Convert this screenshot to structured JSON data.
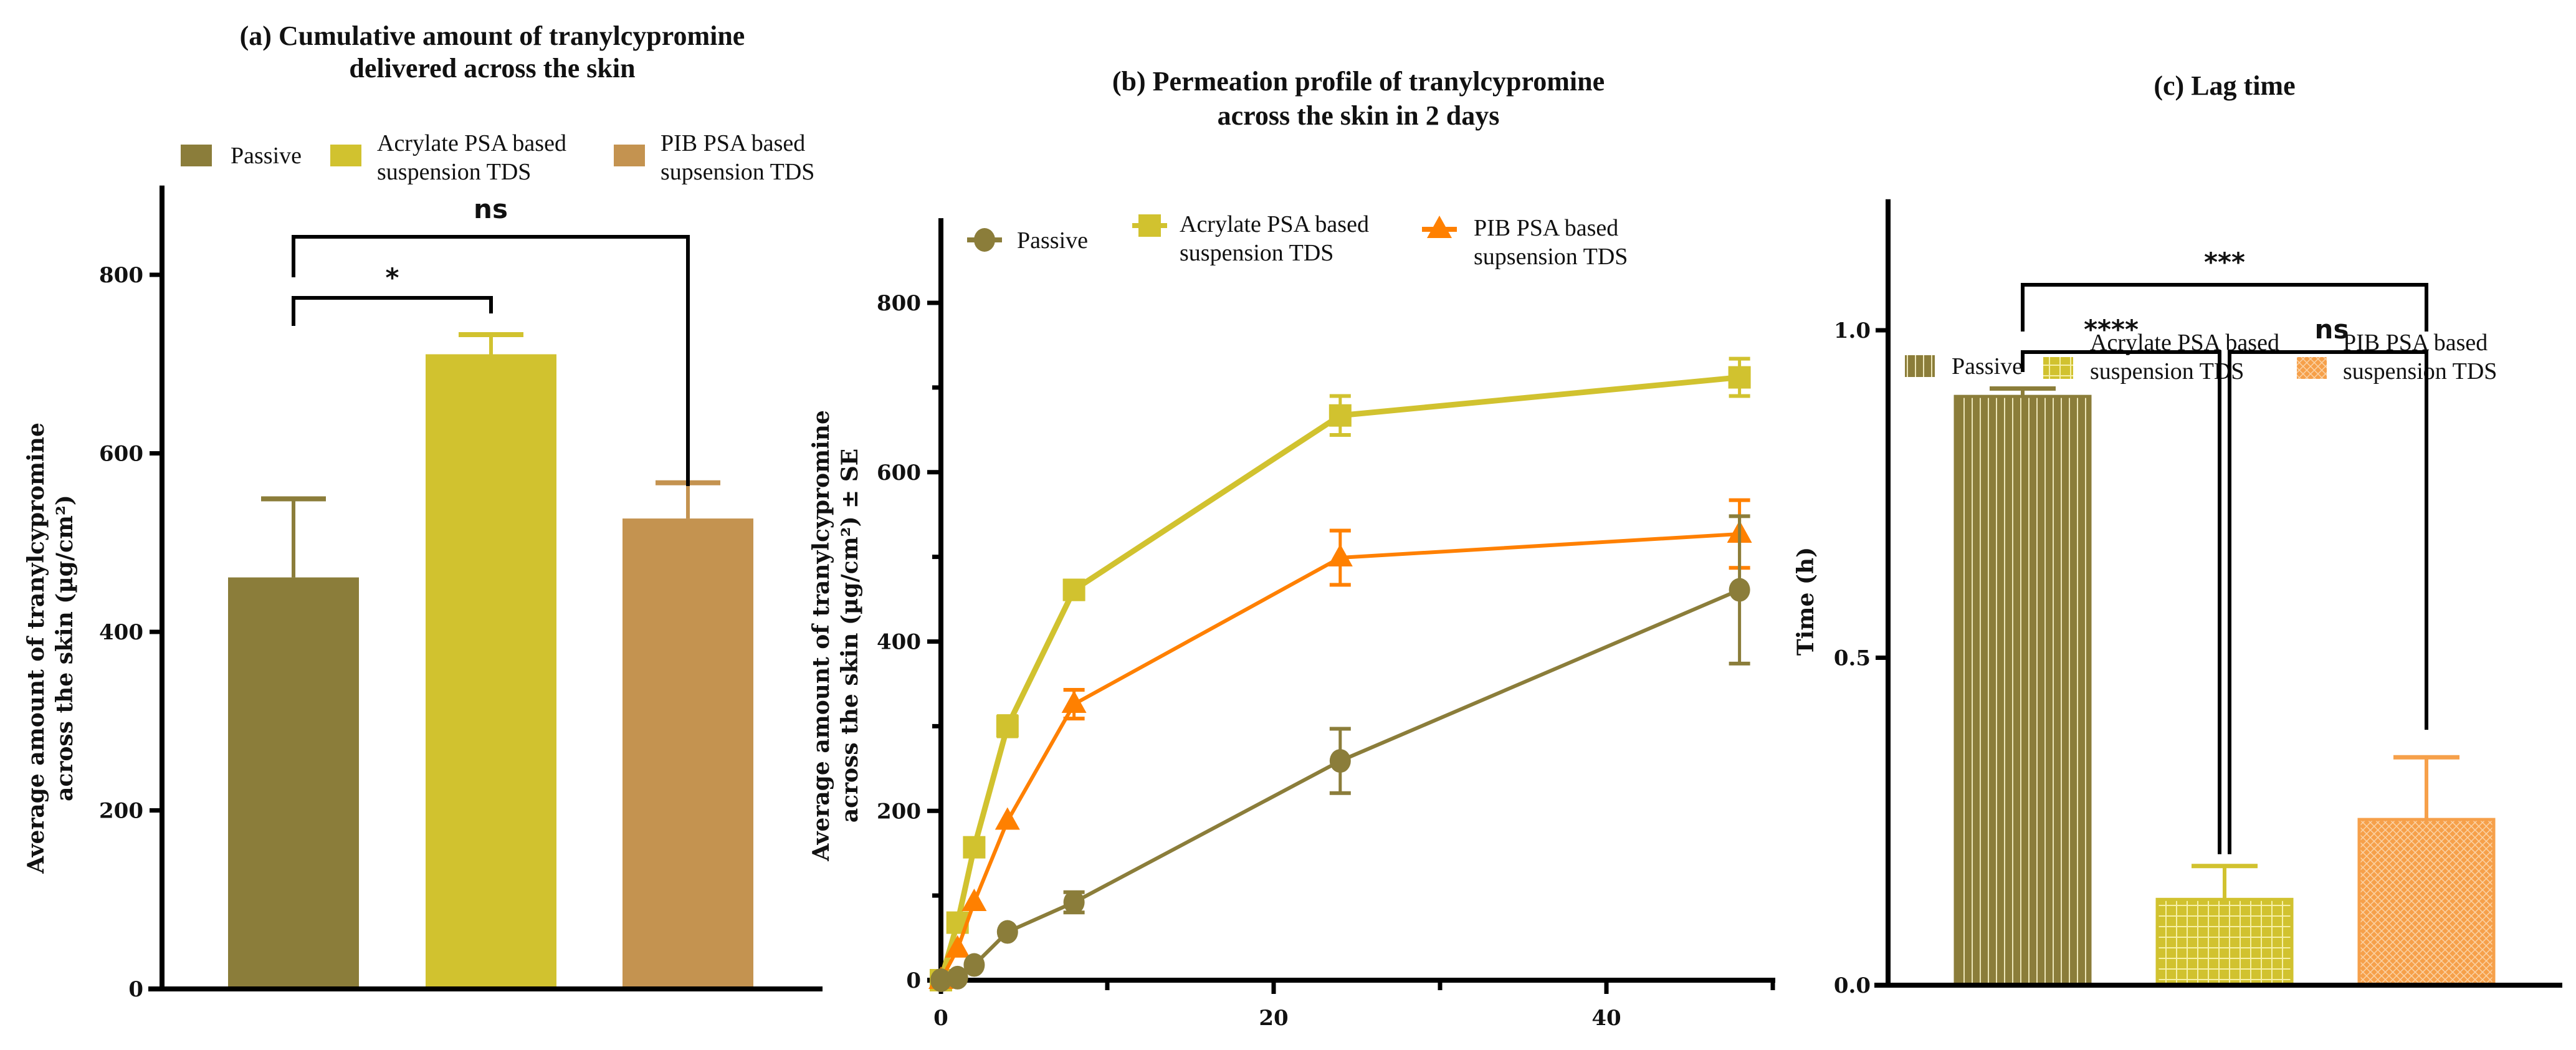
{
  "chart_data": [
    {
      "id": "a",
      "type": "bar",
      "title": [
        "(a)  Cumulative amount of tranylcypromine",
        "delivered across the skin"
      ],
      "xlabel": "",
      "ylabel": [
        "Average amount of tranylcypromine",
        "across the skin (µg/cm²)"
      ],
      "ylim": [
        0,
        900
      ],
      "yticks": [
        0,
        200,
        400,
        600,
        800
      ],
      "grid": false,
      "legend_position": "top",
      "categories": [
        "Passive",
        "Acrylate PSA based suspension TDS",
        "PIB PSA based supsension TDS"
      ],
      "legend": [
        {
          "label_lines": [
            "Passive"
          ],
          "color": "#8B7D3A"
        },
        {
          "label_lines": [
            "Acrylate PSA based",
            "suspension TDS"
          ],
          "color": "#D1C22F"
        },
        {
          "label_lines": [
            "PIB PSA based",
            "supsension TDS"
          ],
          "color": "#C49350"
        }
      ],
      "values": [
        461,
        711,
        527
      ],
      "error_upper": [
        549,
        733,
        567
      ],
      "colors": [
        "#8B7D3A",
        "#D1C22F",
        "#C49350"
      ],
      "significance": [
        {
          "from": 0,
          "to": 1,
          "label": "*"
        },
        {
          "from": 0,
          "to": 2,
          "label": "ns"
        }
      ]
    },
    {
      "id": "b",
      "type": "line",
      "title": [
        "(b) Permeation profile of tranylcypromine",
        "across the skin in 2 days"
      ],
      "xlabel": "",
      "ylabel": [
        "Average amount of tranylcypromine",
        "across the skin (µg/cm²) ± SE"
      ],
      "xlim": [
        0,
        50
      ],
      "ylim": [
        0,
        900
      ],
      "xticks": [
        0,
        20,
        40
      ],
      "xminor": [
        10,
        30,
        50
      ],
      "yticks": [
        0,
        200,
        400,
        600,
        800
      ],
      "yminor": [
        100,
        300,
        500,
        700
      ],
      "grid": false,
      "legend_position": "top",
      "x": [
        0,
        1,
        2,
        4,
        8,
        24,
        48
      ],
      "series": [
        {
          "name": "Passive",
          "label_lines": [
            "Passive"
          ],
          "marker": "circle",
          "color": "#8B7D3A",
          "values": [
            0,
            3,
            18,
            57,
            92,
            259,
            461
          ],
          "error": [
            0,
            0,
            0,
            0,
            12,
            38,
            87
          ]
        },
        {
          "name": "Acrylate PSA based suspension TDS",
          "label_lines": [
            "Acrylate PSA based",
            "suspension TDS"
          ],
          "marker": "square",
          "color": "#D1C22F",
          "values": [
            0,
            68,
            157,
            300,
            461,
            667,
            712
          ],
          "error": [
            0,
            0,
            0,
            12,
            11,
            23,
            22
          ]
        },
        {
          "name": "PIB PSA based supsension TDS",
          "label_lines": [
            "PIB PSA based",
            "supsension TDS"
          ],
          "marker": "triangle",
          "color": "#FF8000",
          "values": [
            0,
            37,
            92,
            188,
            326,
            499,
            527
          ],
          "error": [
            0,
            0,
            0,
            0,
            17,
            32,
            40
          ]
        }
      ]
    },
    {
      "id": "c",
      "type": "bar",
      "title": [
        "(c) Lag time"
      ],
      "xlabel": "",
      "ylabel": [
        "Time (h)"
      ],
      "ylim": [
        0,
        1.2
      ],
      "yticks": [
        0.0,
        0.5,
        1.0
      ],
      "ytick_labels": [
        "0.0",
        "0.5",
        "1.0"
      ],
      "grid": false,
      "legend_position": "top",
      "categories": [
        "Passive",
        "Acrylate PSA based suspension TDS",
        "PIB PSA based suspension TDS"
      ],
      "legend": [
        {
          "label_lines": [
            "Passive"
          ],
          "color": "#8B7D3A",
          "pattern": "vertical-lines"
        },
        {
          "label_lines": [
            "Acrylate PSA based",
            "suspension TDS"
          ],
          "color": "#D1C22F",
          "pattern": "grid"
        },
        {
          "label_lines": [
            "PIB PSA based",
            " suspension TDS"
          ],
          "color": "#F6A04A",
          "pattern": "crosshatch"
        }
      ],
      "values": [
        0.899,
        0.131,
        0.253
      ],
      "error_upper": [
        0.911,
        0.182,
        0.348
      ],
      "colors": [
        "#8B7D3A",
        "#D1C22F",
        "#F6A04A"
      ],
      "significance": [
        {
          "from": 0,
          "to": 1,
          "label": "****"
        },
        {
          "from": 1,
          "to": 2,
          "label": "ns"
        },
        {
          "from": 0,
          "to": 2,
          "label": "***"
        }
      ]
    }
  ]
}
